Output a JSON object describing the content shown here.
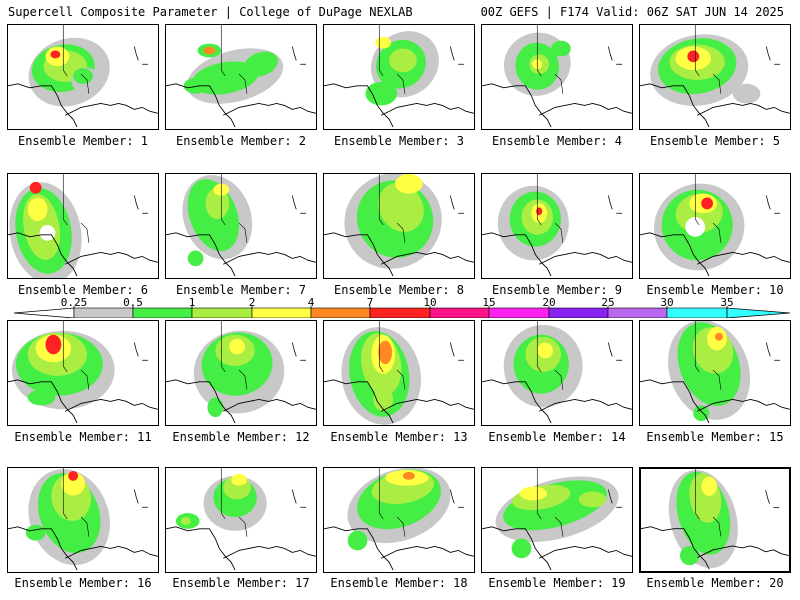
{
  "header": {
    "title": "Supercell Composite Parameter | College of DuPage NEXLAB",
    "run_info": "00Z GEFS | F174 Valid: 06Z SAT JUN 14 2025"
  },
  "legend": {
    "labels": [
      "0.25",
      "0.5",
      "1",
      "2",
      "4",
      "7",
      "10",
      "15",
      "20",
      "25",
      "30",
      "35"
    ],
    "colors": [
      "#ffffff",
      "#c8c8c8",
      "#44ee44",
      "#aaee44",
      "#ffff44",
      "#ff8822",
      "#ff2222",
      "#ff1188",
      "#ff22ee",
      "#8822ee",
      "#bb66ee",
      "#33ffff"
    ]
  },
  "colors": {
    "gray": "#c8c8c8",
    "green": "#44ee44",
    "lime": "#aaee44",
    "yellow": "#ffff44",
    "orange": "#ff8822",
    "red": "#ff2222"
  },
  "panels": [
    {
      "label": "Ensemble Member: 1",
      "max_category": "red"
    },
    {
      "label": "Ensemble Member: 2",
      "max_category": "orange"
    },
    {
      "label": "Ensemble Member: 3",
      "max_category": "yellow"
    },
    {
      "label": "Ensemble Member: 4",
      "max_category": "yellow"
    },
    {
      "label": "Ensemble Member: 5",
      "max_category": "red"
    },
    {
      "label": "Ensemble Member: 6",
      "max_category": "red"
    },
    {
      "label": "Ensemble Member: 7",
      "max_category": "yellow"
    },
    {
      "label": "Ensemble Member: 8",
      "max_category": "yellow"
    },
    {
      "label": "Ensemble Member: 9",
      "max_category": "red"
    },
    {
      "label": "Ensemble Member: 10",
      "max_category": "red"
    },
    {
      "label": "Ensemble Member: 11",
      "max_category": "red"
    },
    {
      "label": "Ensemble Member: 12",
      "max_category": "yellow"
    },
    {
      "label": "Ensemble Member: 13",
      "max_category": "orange"
    },
    {
      "label": "Ensemble Member: 14",
      "max_category": "yellow"
    },
    {
      "label": "Ensemble Member: 15",
      "max_category": "orange"
    },
    {
      "label": "Ensemble Member: 16",
      "max_category": "red"
    },
    {
      "label": "Ensemble Member: 17",
      "max_category": "yellow"
    },
    {
      "label": "Ensemble Member: 18",
      "max_category": "orange"
    },
    {
      "label": "Ensemble Member: 19",
      "max_category": "yellow"
    },
    {
      "label": "Ensemble Member: 20",
      "max_category": "yellow",
      "selected": true
    }
  ]
}
